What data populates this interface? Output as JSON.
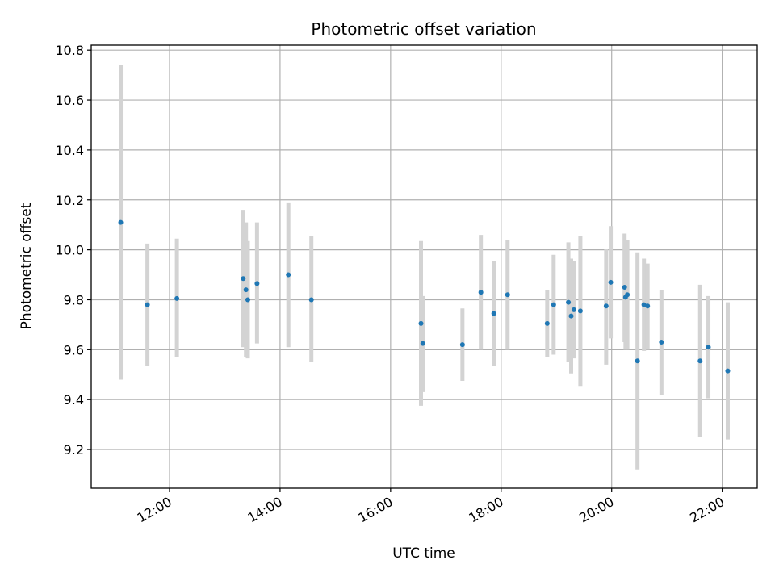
{
  "chart_data": {
    "type": "scatter",
    "title": "Photometric offset variation",
    "xlabel": "UTC time",
    "ylabel": "Photometric offset",
    "x_unit": "UTC time (HH:MM)",
    "xlim": [
      "10:35",
      "22:38"
    ],
    "ylim": [
      9.045,
      10.82
    ],
    "xticks": [
      "12:00",
      "14:00",
      "16:00",
      "18:00",
      "20:00",
      "22:00"
    ],
    "yticks": [
      "9.2",
      "9.4",
      "9.6",
      "9.8",
      "10.0",
      "10.2",
      "10.4",
      "10.6",
      "10.8"
    ],
    "grid": true,
    "colors": {
      "points": "#1f77b4",
      "errorbars": "#d3d3d3",
      "grid": "#b0b0b0"
    },
    "points": [
      {
        "x": "11:07",
        "y": 10.11,
        "ylo": 9.48,
        "yhi": 10.74
      },
      {
        "x": "11:36",
        "y": 9.78,
        "ylo": 9.535,
        "yhi": 10.025
      },
      {
        "x": "12:08",
        "y": 9.805,
        "ylo": 9.57,
        "yhi": 10.045
      },
      {
        "x": "13:20",
        "y": 9.885,
        "ylo": 9.61,
        "yhi": 10.16
      },
      {
        "x": "13:23",
        "y": 9.84,
        "ylo": 9.57,
        "yhi": 10.11
      },
      {
        "x": "13:25",
        "y": 9.8,
        "ylo": 9.565,
        "yhi": 10.035
      },
      {
        "x": "13:35",
        "y": 9.865,
        "ylo": 9.625,
        "yhi": 10.11
      },
      {
        "x": "14:09",
        "y": 9.9,
        "ylo": 9.61,
        "yhi": 10.19
      },
      {
        "x": "14:34",
        "y": 9.8,
        "ylo": 9.55,
        "yhi": 10.055
      },
      {
        "x": "16:33",
        "y": 9.705,
        "ylo": 9.375,
        "yhi": 10.035
      },
      {
        "x": "16:35",
        "y": 9.625,
        "ylo": 9.43,
        "yhi": 9.815
      },
      {
        "x": "17:18",
        "y": 9.62,
        "ylo": 9.475,
        "yhi": 9.765
      },
      {
        "x": "17:38",
        "y": 9.83,
        "ylo": 9.6,
        "yhi": 10.06
      },
      {
        "x": "17:52",
        "y": 9.745,
        "ylo": 9.535,
        "yhi": 9.955
      },
      {
        "x": "18:07",
        "y": 9.82,
        "ylo": 9.6,
        "yhi": 10.04
      },
      {
        "x": "18:50",
        "y": 9.705,
        "ylo": 9.57,
        "yhi": 9.84
      },
      {
        "x": "18:57",
        "y": 9.78,
        "ylo": 9.58,
        "yhi": 9.98
      },
      {
        "x": "19:13",
        "y": 9.79,
        "ylo": 9.55,
        "yhi": 10.03
      },
      {
        "x": "19:16",
        "y": 9.735,
        "ylo": 9.505,
        "yhi": 9.965
      },
      {
        "x": "19:19",
        "y": 9.76,
        "ylo": 9.565,
        "yhi": 9.955
      },
      {
        "x": "19:26",
        "y": 9.755,
        "ylo": 9.455,
        "yhi": 10.055
      },
      {
        "x": "19:54",
        "y": 9.775,
        "ylo": 9.54,
        "yhi": 10.005
      },
      {
        "x": "19:59",
        "y": 9.87,
        "ylo": 9.645,
        "yhi": 10.095
      },
      {
        "x": "20:14",
        "y": 9.85,
        "ylo": 9.63,
        "yhi": 10.065
      },
      {
        "x": "20:15",
        "y": 9.81,
        "ylo": 9.6,
        "yhi": 10.02
      },
      {
        "x": "20:17",
        "y": 9.82,
        "ylo": 9.6,
        "yhi": 10.04
      },
      {
        "x": "20:28",
        "y": 9.555,
        "ylo": 9.12,
        "yhi": 9.99
      },
      {
        "x": "20:35",
        "y": 9.78,
        "ylo": 9.595,
        "yhi": 9.965
      },
      {
        "x": "20:39",
        "y": 9.775,
        "ylo": 9.6,
        "yhi": 9.945
      },
      {
        "x": "20:54",
        "y": 9.63,
        "ylo": 9.42,
        "yhi": 9.84
      },
      {
        "x": "21:36",
        "y": 9.555,
        "ylo": 9.25,
        "yhi": 9.86
      },
      {
        "x": "21:45",
        "y": 9.61,
        "ylo": 9.405,
        "yhi": 9.815
      },
      {
        "x": "22:06",
        "y": 9.515,
        "ylo": 9.24,
        "yhi": 9.79
      }
    ]
  }
}
